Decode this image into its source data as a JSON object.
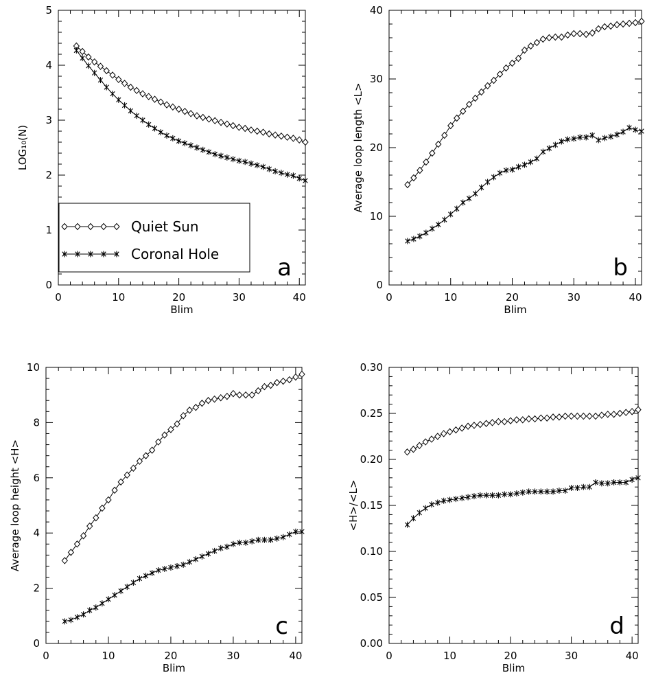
{
  "legend": {
    "entries": [
      {
        "label": "Quiet Sun",
        "marker": "diamond"
      },
      {
        "label": "Coronal Hole",
        "marker": "asterisk"
      }
    ]
  },
  "chart_data": [
    {
      "type": "line",
      "panel_letter": "a",
      "xlabel": "Blim",
      "ylabel": "LOG₁₀(N)",
      "xlim": [
        0,
        41
      ],
      "ylim": [
        0,
        5
      ],
      "xticks": [
        "0",
        "10",
        "20",
        "30",
        "40"
      ],
      "yticks": [
        "0",
        "1",
        "2",
        "3",
        "4",
        "5"
      ],
      "legend_position": "bottom-left",
      "series": [
        {
          "name": "Quiet Sun",
          "marker": "diamond",
          "x": [
            3,
            4,
            5,
            6,
            7,
            8,
            9,
            10,
            11,
            12,
            13,
            14,
            15,
            16,
            17,
            18,
            19,
            20,
            21,
            22,
            23,
            24,
            25,
            26,
            27,
            28,
            29,
            30,
            31,
            32,
            33,
            34,
            35,
            36,
            37,
            38,
            39,
            40,
            41
          ],
          "y": [
            4.35,
            4.25,
            4.15,
            4.06,
            3.98,
            3.9,
            3.82,
            3.74,
            3.67,
            3.6,
            3.54,
            3.48,
            3.43,
            3.38,
            3.33,
            3.28,
            3.24,
            3.2,
            3.16,
            3.12,
            3.08,
            3.05,
            3.02,
            2.99,
            2.96,
            2.93,
            2.9,
            2.87,
            2.85,
            2.82,
            2.8,
            2.78,
            2.75,
            2.73,
            2.71,
            2.69,
            2.67,
            2.64,
            2.6
          ]
        },
        {
          "name": "Coronal Hole",
          "marker": "asterisk",
          "x": [
            3,
            4,
            5,
            6,
            7,
            8,
            9,
            10,
            11,
            12,
            13,
            14,
            15,
            16,
            17,
            18,
            19,
            20,
            21,
            22,
            23,
            24,
            25,
            26,
            27,
            28,
            29,
            30,
            31,
            32,
            33,
            34,
            35,
            36,
            37,
            38,
            39,
            40,
            41
          ],
          "y": [
            4.27,
            4.13,
            3.99,
            3.86,
            3.73,
            3.6,
            3.48,
            3.37,
            3.27,
            3.17,
            3.08,
            3.0,
            2.92,
            2.85,
            2.78,
            2.72,
            2.67,
            2.62,
            2.58,
            2.54,
            2.5,
            2.46,
            2.42,
            2.38,
            2.35,
            2.32,
            2.29,
            2.26,
            2.24,
            2.21,
            2.18,
            2.15,
            2.11,
            2.07,
            2.04,
            2.01,
            1.99,
            1.94,
            1.9
          ]
        }
      ]
    },
    {
      "type": "line",
      "panel_letter": "b",
      "xlabel": "Blim",
      "ylabel": "Average loop length <L>",
      "xlim": [
        0,
        41
      ],
      "ylim": [
        0,
        40
      ],
      "xticks": [
        "0",
        "10",
        "20",
        "30",
        "40"
      ],
      "yticks": [
        "0",
        "10",
        "20",
        "30",
        "40"
      ],
      "series": [
        {
          "name": "Quiet Sun",
          "marker": "diamond",
          "x": [
            3,
            4,
            5,
            6,
            7,
            8,
            9,
            10,
            11,
            12,
            13,
            14,
            15,
            16,
            17,
            18,
            19,
            20,
            21,
            22,
            23,
            24,
            25,
            26,
            27,
            28,
            29,
            30,
            31,
            32,
            33,
            34,
            35,
            36,
            37,
            38,
            39,
            40,
            41
          ],
          "y": [
            14.6,
            15.6,
            16.7,
            17.9,
            19.2,
            20.5,
            21.8,
            23.2,
            24.3,
            25.3,
            26.3,
            27.2,
            28.1,
            29.0,
            29.8,
            30.7,
            31.6,
            32.3,
            33.0,
            34.2,
            34.8,
            35.3,
            35.8,
            36.0,
            36.1,
            36.1,
            36.4,
            36.6,
            36.6,
            36.5,
            36.7,
            37.3,
            37.6,
            37.7,
            37.9,
            38.0,
            38.1,
            38.2,
            38.4
          ]
        },
        {
          "name": "Coronal Hole",
          "marker": "asterisk",
          "x": [
            3,
            4,
            5,
            6,
            7,
            8,
            9,
            10,
            11,
            12,
            13,
            14,
            15,
            16,
            17,
            18,
            19,
            20,
            21,
            22,
            23,
            24,
            25,
            26,
            27,
            28,
            29,
            30,
            31,
            32,
            33,
            34,
            35,
            36,
            37,
            38,
            39,
            40,
            41
          ],
          "y": [
            6.4,
            6.7,
            7.1,
            7.6,
            8.2,
            8.8,
            9.5,
            10.3,
            11.1,
            12.0,
            12.6,
            13.3,
            14.2,
            15.0,
            15.7,
            16.3,
            16.7,
            16.8,
            17.2,
            17.5,
            17.9,
            18.4,
            19.4,
            19.9,
            20.4,
            20.9,
            21.2,
            21.3,
            21.5,
            21.5,
            21.8,
            21.1,
            21.4,
            21.6,
            21.9,
            22.3,
            22.9,
            22.6,
            22.4
          ]
        }
      ]
    },
    {
      "type": "line",
      "panel_letter": "c",
      "xlabel": "Blim",
      "ylabel": "Average loop height <H>",
      "xlim": [
        0,
        41
      ],
      "ylim": [
        0,
        10
      ],
      "xticks": [
        "0",
        "10",
        "20",
        "30",
        "40"
      ],
      "yticks": [
        "0",
        "2",
        "4",
        "6",
        "8",
        "10"
      ],
      "series": [
        {
          "name": "Quiet Sun",
          "marker": "diamond",
          "x": [
            3,
            4,
            5,
            6,
            7,
            8,
            9,
            10,
            11,
            12,
            13,
            14,
            15,
            16,
            17,
            18,
            19,
            20,
            21,
            22,
            23,
            24,
            25,
            26,
            27,
            28,
            29,
            30,
            31,
            32,
            33,
            34,
            35,
            36,
            37,
            38,
            39,
            40,
            41
          ],
          "y": [
            3.0,
            3.3,
            3.6,
            3.9,
            4.25,
            4.55,
            4.9,
            5.2,
            5.55,
            5.85,
            6.1,
            6.35,
            6.6,
            6.8,
            7.0,
            7.3,
            7.55,
            7.75,
            7.95,
            8.25,
            8.45,
            8.55,
            8.7,
            8.8,
            8.85,
            8.9,
            8.95,
            9.05,
            9.0,
            9.0,
            9.0,
            9.15,
            9.3,
            9.35,
            9.45,
            9.5,
            9.55,
            9.65,
            9.75
          ]
        },
        {
          "name": "Coronal Hole",
          "marker": "asterisk",
          "x": [
            3,
            4,
            5,
            6,
            7,
            8,
            9,
            10,
            11,
            12,
            13,
            14,
            15,
            16,
            17,
            18,
            19,
            20,
            21,
            22,
            23,
            24,
            25,
            26,
            27,
            28,
            29,
            30,
            31,
            32,
            33,
            34,
            35,
            36,
            37,
            38,
            39,
            40,
            41
          ],
          "y": [
            0.8,
            0.85,
            0.95,
            1.05,
            1.2,
            1.3,
            1.45,
            1.6,
            1.75,
            1.9,
            2.05,
            2.2,
            2.35,
            2.45,
            2.55,
            2.65,
            2.7,
            2.75,
            2.8,
            2.85,
            2.95,
            3.05,
            3.15,
            3.25,
            3.35,
            3.45,
            3.5,
            3.6,
            3.65,
            3.65,
            3.7,
            3.75,
            3.75,
            3.75,
            3.8,
            3.85,
            3.95,
            4.05,
            4.05
          ]
        }
      ]
    },
    {
      "type": "line",
      "panel_letter": "d",
      "xlabel": "Blim",
      "ylabel": "<H>/<L>",
      "xlim": [
        0,
        41
      ],
      "ylim": [
        0,
        0.3
      ],
      "xticks": [
        "0",
        "10",
        "20",
        "30",
        "40"
      ],
      "yticks": [
        "0.00",
        "0.05",
        "0.10",
        "0.15",
        "0.20",
        "0.25",
        "0.30"
      ],
      "series": [
        {
          "name": "Quiet Sun",
          "marker": "diamond",
          "x": [
            3,
            4,
            5,
            6,
            7,
            8,
            9,
            10,
            11,
            12,
            13,
            14,
            15,
            16,
            17,
            18,
            19,
            20,
            21,
            22,
            23,
            24,
            25,
            26,
            27,
            28,
            29,
            30,
            31,
            32,
            33,
            34,
            35,
            36,
            37,
            38,
            39,
            40,
            41
          ],
          "y": [
            0.208,
            0.211,
            0.215,
            0.219,
            0.222,
            0.225,
            0.228,
            0.23,
            0.232,
            0.234,
            0.236,
            0.237,
            0.238,
            0.239,
            0.24,
            0.241,
            0.241,
            0.242,
            0.243,
            0.243,
            0.244,
            0.244,
            0.245,
            0.245,
            0.246,
            0.246,
            0.247,
            0.247,
            0.247,
            0.247,
            0.247,
            0.247,
            0.248,
            0.249,
            0.249,
            0.25,
            0.251,
            0.252,
            0.254
          ]
        },
        {
          "name": "Coronal Hole",
          "marker": "asterisk",
          "x": [
            3,
            4,
            5,
            6,
            7,
            8,
            9,
            10,
            11,
            12,
            13,
            14,
            15,
            16,
            17,
            18,
            19,
            20,
            21,
            22,
            23,
            24,
            25,
            26,
            27,
            28,
            29,
            30,
            31,
            32,
            33,
            34,
            35,
            36,
            37,
            38,
            39,
            40,
            41
          ],
          "y": [
            0.129,
            0.136,
            0.142,
            0.147,
            0.151,
            0.153,
            0.155,
            0.156,
            0.157,
            0.158,
            0.159,
            0.16,
            0.161,
            0.161,
            0.161,
            0.161,
            0.162,
            0.162,
            0.163,
            0.164,
            0.165,
            0.165,
            0.165,
            0.165,
            0.165,
            0.166,
            0.166,
            0.169,
            0.169,
            0.17,
            0.17,
            0.175,
            0.174,
            0.174,
            0.175,
            0.175,
            0.175,
            0.178,
            0.18
          ]
        }
      ]
    }
  ]
}
